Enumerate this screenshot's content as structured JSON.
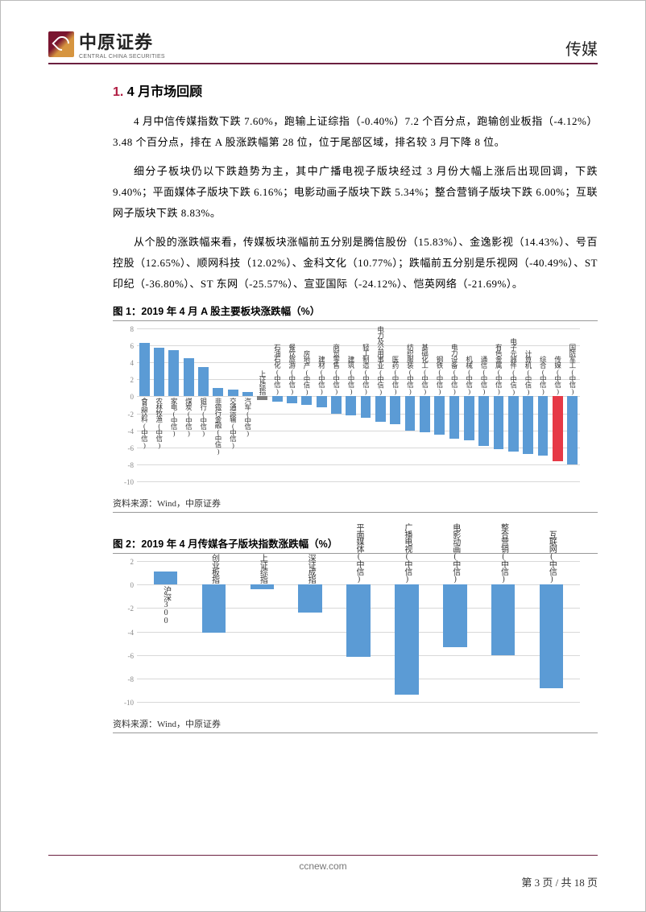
{
  "header": {
    "logo_cn": "中原证券",
    "logo_en": "CENTRAL CHINA SECURITIES",
    "category": "传媒"
  },
  "section": {
    "num": "1.",
    "title": "4 月市场回顾"
  },
  "paragraphs": {
    "p1": "4 月中信传媒指数下跌 7.60%，跑输上证综指（-0.40%）7.2 个百分点，跑输创业板指（-4.12%）3.48 个百分点，排在 A 股涨跌幅第 28 位，位于尾部区域，排名较 3 月下降 8 位。",
    "p2": "细分子板块仍以下跌趋势为主，其中广播电视子版块经过 3 月份大幅上涨后出现回调，下跌 9.40%；平面媒体子版块下跌 6.16%；电影动画子版块下跌 5.34%；整合营销子版块下跌 6.00%；互联网子版块下跌 8.83%。",
    "p3": "从个股的涨跌幅来看，传媒板块涨幅前五分别是腾信股份（15.83%）、金逸影视（14.43%）、号百控股（12.65%）、顺网科技（12.02%）、金科文化（10.77%）；跌幅前五分别是乐视网（-40.49%）、ST 印纪（-36.80%）、ST 东网（-25.57%）、宣亚国际（-24.12%）、恺英网络（-21.69%）。"
  },
  "chart1": {
    "title": "图 1：2019 年 4 月 A 股主要板块涨跌幅（%）",
    "source": "资料来源：Wind，中原证券",
    "ylim": [
      -10,
      8
    ],
    "ytick_step": 2,
    "grid_color": "#d8d8d8",
    "tick_color": "#888888",
    "default_bar_color": "#5b9bd5",
    "special_colors": {
      "上证综指": "#808080",
      "传媒(中信)": "#e63946"
    },
    "bars": [
      {
        "label": "食品饮料(中信)",
        "value": 6.3
      },
      {
        "label": "农林牧渔(中信)",
        "value": 5.7
      },
      {
        "label": "家电(中信)",
        "value": 5.4
      },
      {
        "label": "煤炭(中信)",
        "value": 4.5
      },
      {
        "label": "银行(中信)",
        "value": 3.5
      },
      {
        "label": "非银行金融(中信)",
        "value": 1.0
      },
      {
        "label": "交通运输(中信)",
        "value": 0.8
      },
      {
        "label": "汽车(中信)",
        "value": 0.5
      },
      {
        "label": "上证综指",
        "value": -0.4
      },
      {
        "label": "石油石化(中信)",
        "value": -0.6
      },
      {
        "label": "餐饮旅游(中信)",
        "value": -0.8
      },
      {
        "label": "房地产(中信)",
        "value": -1.0
      },
      {
        "label": "建材(中信)",
        "value": -1.3
      },
      {
        "label": "商贸零售(中信)",
        "value": -2.0
      },
      {
        "label": "建筑(中信)",
        "value": -2.2
      },
      {
        "label": "轻工制造(中信)",
        "value": -2.5
      },
      {
        "label": "电力及公用事业(中信)",
        "value": -3.0
      },
      {
        "label": "医药(中信)",
        "value": -3.3
      },
      {
        "label": "纺织服装(中信)",
        "value": -4.0
      },
      {
        "label": "基础化工(中信)",
        "value": -4.2
      },
      {
        "label": "钢铁(中信)",
        "value": -4.5
      },
      {
        "label": "电力设备(中信)",
        "value": -5.0
      },
      {
        "label": "机械(中信)",
        "value": -5.2
      },
      {
        "label": "通信(中信)",
        "value": -5.8
      },
      {
        "label": "有色金属(中信)",
        "value": -6.2
      },
      {
        "label": "电子元器件(中信)",
        "value": -6.5
      },
      {
        "label": "计算机(中信)",
        "value": -6.8
      },
      {
        "label": "综合(中信)",
        "value": -7.0
      },
      {
        "label": "传媒(中信)",
        "value": -7.6
      },
      {
        "label": "国防军工(中信)",
        "value": -8.0
      }
    ]
  },
  "chart2": {
    "title": "图 2：2019 年 4 月传媒各子版块指数涨跌幅（%）",
    "source": "资料来源：Wind，中原证券",
    "ylim": [
      -10,
      2
    ],
    "ytick_step": 2,
    "grid_color": "#d8d8d8",
    "tick_color": "#888888",
    "bar_color": "#5b9bd5",
    "bars": [
      {
        "label": "沪深300",
        "value": 1.1
      },
      {
        "label": "创业板指",
        "value": -4.12
      },
      {
        "label": "上证综指",
        "value": -0.4
      },
      {
        "label": "深证成指",
        "value": -2.4
      },
      {
        "label": "平面媒体(中信)",
        "value": -6.16
      },
      {
        "label": "广播电视(中信)",
        "value": -9.4
      },
      {
        "label": "电影动画(中信)",
        "value": -5.34
      },
      {
        "label": "整合营销(中信)",
        "value": -6.0
      },
      {
        "label": "互联网(中信)",
        "value": -8.83
      }
    ]
  },
  "footer": {
    "url": "ccnew.com",
    "page_label": "第 3 页  / 共 18 页"
  }
}
